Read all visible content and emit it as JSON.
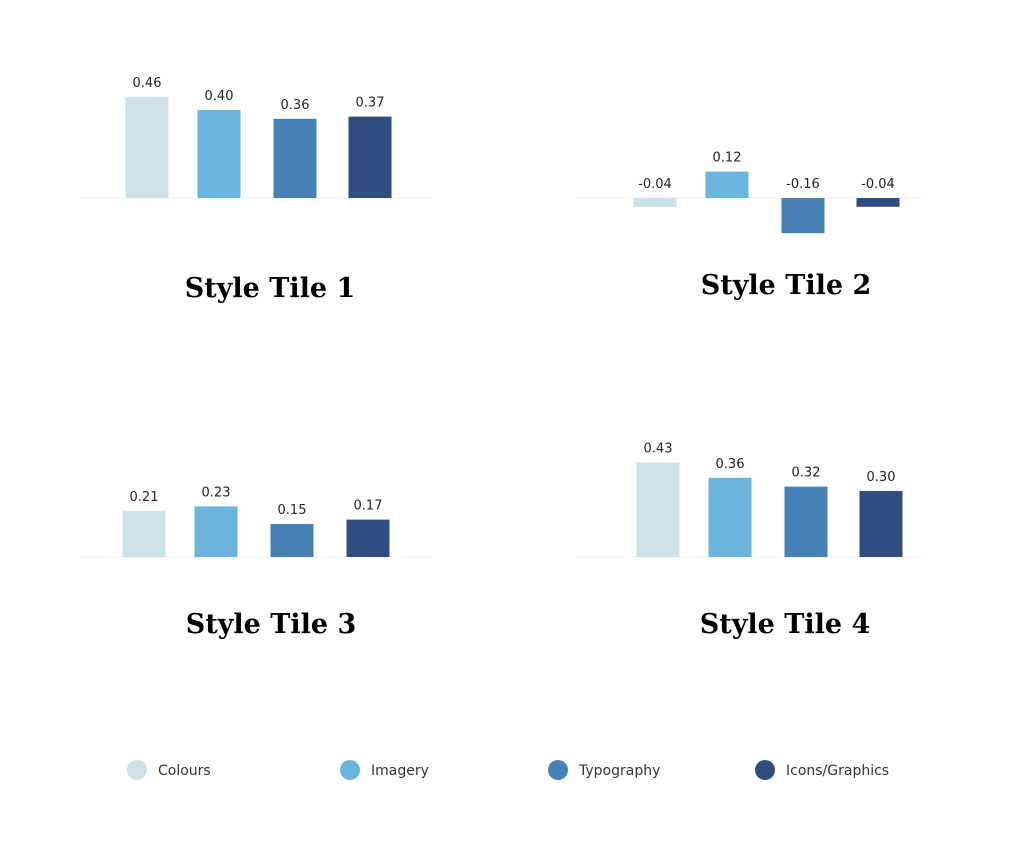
{
  "chart_data": [
    {
      "type": "bar",
      "title": "Style Tile 1",
      "values": [
        0.46,
        0.4,
        0.36,
        0.37
      ],
      "value_labels": [
        "0.46",
        "0.40",
        "0.36",
        "0.37"
      ]
    },
    {
      "type": "bar",
      "title": "Style Tile 2",
      "values": [
        -0.04,
        0.12,
        -0.16,
        -0.04
      ]
    },
    {
      "type": "bar",
      "title": "Style Tile 3",
      "values": [
        0.21,
        0.23,
        0.15,
        0.17
      ]
    },
    {
      "type": "bar",
      "title": "Style Tile 4",
      "values": [
        0.43,
        0.36,
        0.32,
        0.3
      ],
      "value_labels": [
        "0.43",
        "0.36",
        "0.32",
        "0.30"
      ]
    }
  ],
  "legend": {
    "items": [
      {
        "name": "Colours",
        "color": "#cde0e8"
      },
      {
        "name": "Imagery",
        "color": "#6bb5dc"
      },
      {
        "name": "Typography",
        "color": "#4681b5"
      },
      {
        "name": "Icons/Graphics",
        "color": "#2f4d7e"
      }
    ]
  }
}
